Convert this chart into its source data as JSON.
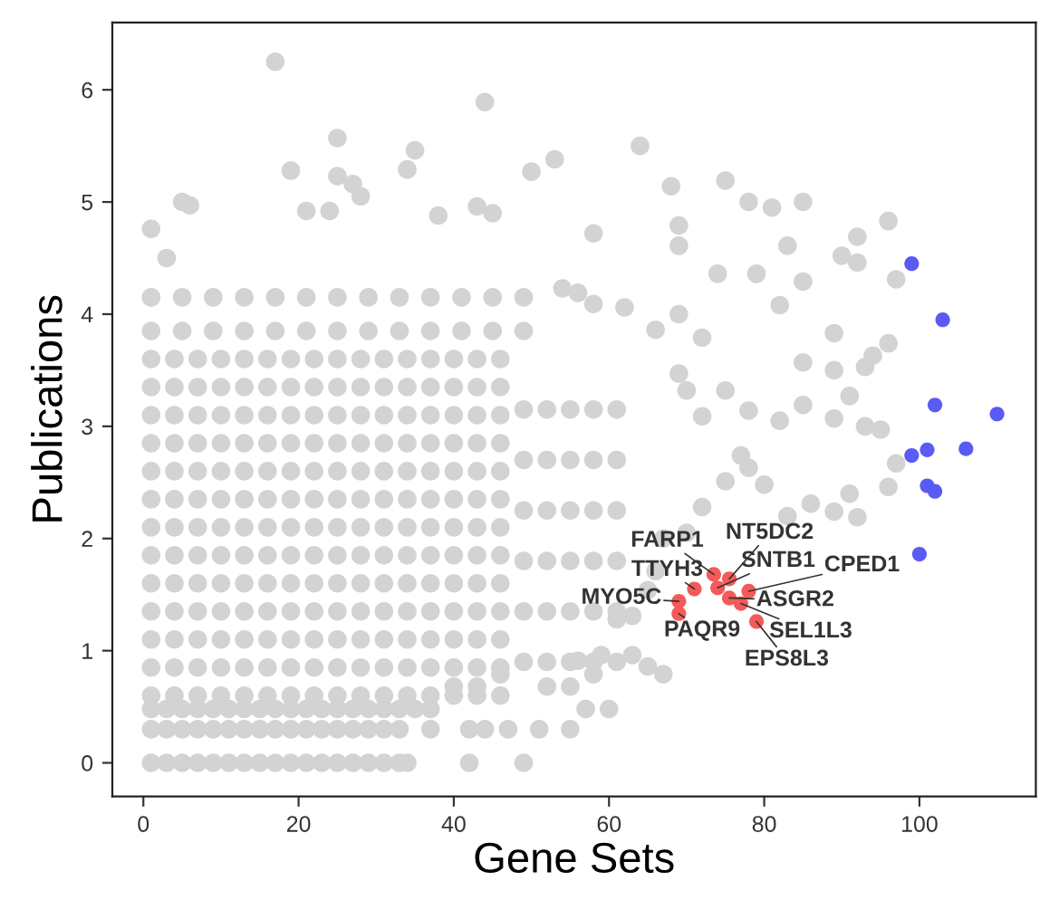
{
  "chart_data": {
    "type": "scatter",
    "xlabel": "Gene Sets",
    "ylabel": "Publications",
    "xlim": [
      -4,
      115
    ],
    "ylim": [
      -0.3,
      6.6
    ],
    "xticks": [
      0,
      20,
      40,
      60,
      80,
      100
    ],
    "yticks": [
      0,
      1,
      2,
      3,
      4,
      5,
      6
    ],
    "grid": false,
    "marker": "circle",
    "series": [
      {
        "color": "#d3d3d3",
        "x": [
          1,
          3,
          5,
          7,
          9,
          11,
          13,
          15,
          17,
          19,
          21,
          23,
          25,
          27,
          29,
          31,
          33,
          34,
          1,
          3,
          5,
          7,
          9,
          11,
          13,
          15,
          17,
          19,
          21,
          23,
          25,
          27,
          29,
          31,
          33,
          1,
          3,
          5,
          7,
          9,
          11,
          13,
          15,
          17,
          19,
          21,
          23,
          25,
          27,
          29,
          31,
          33,
          35,
          1,
          1,
          1,
          1,
          1,
          1,
          1,
          1,
          1,
          1,
          1,
          1,
          1,
          4,
          4,
          4,
          4,
          4,
          4,
          4,
          4,
          4,
          4,
          4,
          4,
          4,
          7,
          7,
          7,
          7,
          7,
          7,
          7,
          7,
          7,
          7,
          7,
          7,
          7,
          10,
          10,
          10,
          10,
          10,
          10,
          10,
          10,
          10,
          10,
          10,
          10,
          10,
          13,
          13,
          13,
          13,
          13,
          13,
          13,
          13,
          13,
          13,
          13,
          13,
          13,
          16,
          16,
          16,
          16,
          16,
          16,
          16,
          16,
          16,
          16,
          16,
          16,
          16,
          19,
          19,
          19,
          19,
          19,
          19,
          19,
          19,
          19,
          19,
          19,
          19,
          19,
          22,
          22,
          22,
          22,
          22,
          22,
          22,
          22,
          22,
          22,
          22,
          22,
          22,
          25,
          25,
          25,
          25,
          25,
          25,
          25,
          25,
          25,
          25,
          25,
          25,
          25,
          28,
          28,
          28,
          28,
          28,
          28,
          28,
          28,
          28,
          28,
          28,
          28,
          28,
          31,
          31,
          31,
          31,
          31,
          31,
          31,
          31,
          31,
          31,
          31,
          31,
          31,
          34,
          34,
          34,
          34,
          34,
          34,
          34,
          34,
          34,
          34,
          34,
          34,
          34,
          37,
          37,
          37,
          37,
          37,
          37,
          37,
          37,
          37,
          37,
          37,
          37,
          37,
          40,
          40,
          40,
          40,
          40,
          40,
          40,
          40,
          40,
          40,
          40,
          40,
          40,
          43,
          43,
          43,
          43,
          43,
          43,
          43,
          43,
          43,
          43,
          43,
          43,
          43,
          46,
          46,
          46,
          46,
          46,
          46,
          46,
          46,
          46,
          46,
          46,
          46,
          46,
          49,
          49,
          49,
          49,
          49,
          49,
          52,
          52,
          52,
          52,
          52,
          52,
          55,
          55,
          55,
          55,
          55,
          55,
          58,
          58,
          58,
          58,
          58,
          58,
          61,
          61,
          61,
          61,
          61,
          61,
          1,
          5,
          9,
          13,
          17,
          21,
          25,
          29,
          33,
          37,
          41,
          45,
          49,
          1,
          5,
          9,
          13,
          17,
          21,
          25,
          29,
          33,
          37,
          41,
          45,
          49,
          17,
          44,
          25,
          64,
          35,
          34,
          53,
          50,
          19,
          25,
          27,
          28,
          75,
          68,
          78,
          81,
          85,
          96,
          5,
          6,
          1,
          3,
          21,
          24,
          43,
          45,
          38,
          58,
          69,
          69,
          83,
          92,
          92,
          90,
          97,
          85,
          74,
          79,
          82,
          89,
          96,
          94,
          93,
          89,
          85,
          91,
          85,
          89,
          93,
          95,
          97,
          96,
          91,
          92,
          89,
          86,
          83,
          80,
          82,
          78,
          75,
          72,
          70,
          69,
          72,
          69,
          66,
          62,
          58,
          56,
          54,
          67,
          65,
          63,
          60,
          57,
          55,
          51,
          47,
          44,
          42,
          42,
          49,
          55,
          52,
          56,
          58,
          59,
          61,
          63,
          65,
          66,
          67,
          70,
          72,
          75,
          77,
          78,
          46,
          43,
          40,
          37,
          37
        ],
        "values": [
          0,
          0,
          0,
          0,
          0,
          0,
          0,
          0,
          0,
          0,
          0,
          0,
          0,
          0,
          0,
          0,
          0,
          0,
          0.3,
          0.3,
          0.3,
          0.3,
          0.3,
          0.3,
          0.3,
          0.3,
          0.3,
          0.3,
          0.3,
          0.3,
          0.3,
          0.3,
          0.3,
          0.3,
          0.3,
          0.48,
          0.48,
          0.48,
          0.48,
          0.48,
          0.48,
          0.48,
          0.48,
          0.48,
          0.48,
          0.48,
          0.48,
          0.48,
          0.48,
          0.48,
          0.48,
          0.48,
          0.48,
          0.6,
          0.85,
          1.1,
          1.35,
          1.6,
          1.85,
          2.1,
          2.35,
          2.6,
          2.85,
          3.1,
          3.35,
          3.6,
          0.6,
          0.85,
          1.1,
          1.35,
          1.6,
          1.85,
          2.1,
          2.35,
          2.6,
          2.85,
          3.1,
          3.35,
          3.6,
          0.6,
          0.85,
          1.1,
          1.35,
          1.6,
          1.85,
          2.1,
          2.35,
          2.6,
          2.85,
          3.1,
          3.35,
          3.6,
          0.6,
          0.85,
          1.1,
          1.35,
          1.6,
          1.85,
          2.1,
          2.35,
          2.6,
          2.85,
          3.1,
          3.35,
          3.6,
          0.6,
          0.85,
          1.1,
          1.35,
          1.6,
          1.85,
          2.1,
          2.35,
          2.6,
          2.85,
          3.1,
          3.35,
          3.6,
          0.6,
          0.85,
          1.1,
          1.35,
          1.6,
          1.85,
          2.1,
          2.35,
          2.6,
          2.85,
          3.1,
          3.35,
          3.6,
          0.6,
          0.85,
          1.1,
          1.35,
          1.6,
          1.85,
          2.1,
          2.35,
          2.6,
          2.85,
          3.1,
          3.35,
          3.6,
          0.6,
          0.85,
          1.1,
          1.35,
          1.6,
          1.85,
          2.1,
          2.35,
          2.6,
          2.85,
          3.1,
          3.35,
          3.6,
          0.6,
          0.85,
          1.1,
          1.35,
          1.6,
          1.85,
          2.1,
          2.35,
          2.6,
          2.85,
          3.1,
          3.35,
          3.6,
          0.6,
          0.85,
          1.1,
          1.35,
          1.6,
          1.85,
          2.1,
          2.35,
          2.6,
          2.85,
          3.1,
          3.35,
          3.6,
          0.6,
          0.85,
          1.1,
          1.35,
          1.6,
          1.85,
          2.1,
          2.35,
          2.6,
          2.85,
          3.1,
          3.35,
          3.6,
          0.6,
          0.85,
          1.1,
          1.35,
          1.6,
          1.85,
          2.1,
          2.35,
          2.6,
          2.85,
          3.1,
          3.35,
          3.6,
          0.6,
          0.85,
          1.1,
          1.35,
          1.6,
          1.85,
          2.1,
          2.35,
          2.6,
          2.85,
          3.1,
          3.35,
          3.6,
          0.6,
          0.85,
          1.1,
          1.35,
          1.6,
          1.85,
          2.1,
          2.35,
          2.6,
          2.85,
          3.1,
          3.35,
          3.6,
          0.6,
          0.85,
          1.1,
          1.35,
          1.6,
          1.85,
          2.1,
          2.35,
          2.6,
          2.85,
          3.1,
          3.35,
          3.6,
          0.6,
          0.85,
          1.1,
          1.35,
          1.6,
          1.85,
          2.1,
          2.35,
          2.6,
          2.85,
          3.1,
          3.35,
          3.6,
          0.9,
          1.35,
          1.8,
          2.25,
          2.7,
          3.15,
          0.9,
          1.35,
          1.8,
          2.25,
          2.7,
          3.15,
          0.9,
          1.35,
          1.8,
          2.25,
          2.7,
          3.15,
          0.9,
          1.35,
          1.8,
          2.25,
          2.7,
          3.15,
          0.9,
          1.35,
          1.8,
          2.25,
          2.7,
          3.15,
          3.85,
          3.85,
          3.85,
          3.85,
          3.85,
          3.85,
          3.85,
          3.85,
          3.85,
          3.85,
          3.85,
          3.85,
          3.85,
          4.15,
          4.15,
          4.15,
          4.15,
          4.15,
          4.15,
          4.15,
          4.15,
          4.15,
          4.15,
          4.15,
          4.15,
          4.15,
          6.25,
          5.89,
          5.57,
          5.5,
          5.46,
          5.29,
          5.38,
          5.27,
          5.28,
          5.23,
          5.16,
          5.05,
          5.19,
          5.14,
          5.0,
          4.95,
          5.0,
          4.83,
          5.0,
          4.97,
          4.76,
          4.5,
          4.92,
          4.92,
          4.96,
          4.9,
          4.88,
          4.72,
          4.79,
          4.61,
          4.61,
          4.69,
          4.46,
          4.52,
          4.31,
          4.29,
          4.36,
          4.36,
          4.08,
          3.83,
          3.74,
          3.63,
          3.53,
          3.5,
          3.57,
          3.27,
          3.19,
          3.07,
          3.0,
          2.97,
          2.67,
          2.46,
          2.4,
          2.19,
          2.24,
          2.31,
          2.2,
          2.48,
          3.05,
          3.14,
          3.32,
          3.09,
          3.32,
          3.47,
          3.79,
          4.0,
          3.86,
          4.06,
          4.09,
          4.19,
          4.23,
          0.79,
          0.86,
          0.96,
          0.48,
          0.48,
          0.3,
          0.3,
          0.3,
          0.3,
          0.3,
          0,
          0,
          0.68,
          0.68,
          0.91,
          0.79,
          0.96,
          1.28,
          1.31,
          1.54,
          1.71,
          2.0,
          2.05,
          2.28,
          2.51,
          2.74,
          2.63,
          0.79,
          0.68,
          0.68,
          0.48,
          0.3
        ]
      },
      {
        "color": "#5a5af5",
        "x": [
          99,
          103,
          102,
          110,
          106,
          101,
          99,
          101,
          102,
          100
        ],
        "values": [
          4.45,
          3.95,
          3.19,
          3.11,
          2.8,
          2.79,
          2.74,
          2.47,
          2.42,
          1.86
        ]
      },
      {
        "color": "#f55a5a",
        "x": [
          73.5,
          75.5,
          74,
          71,
          78,
          75.5,
          77,
          79,
          69,
          69
        ],
        "values": [
          1.68,
          1.64,
          1.56,
          1.55,
          1.53,
          1.47,
          1.42,
          1.26,
          1.44,
          1.33
        ]
      }
    ],
    "annotations": [
      {
        "text": "FARP1",
        "x": 73.5,
        "y": 1.68
      },
      {
        "text": "NT5DC2",
        "x": 75.5,
        "y": 1.64
      },
      {
        "text": "SNTB1",
        "x": 74,
        "y": 1.56
      },
      {
        "text": "TTYH3",
        "x": 71,
        "y": 1.55
      },
      {
        "text": "CPED1",
        "x": 78,
        "y": 1.53
      },
      {
        "text": "ASGR2",
        "x": 75.5,
        "y": 1.47
      },
      {
        "text": "SEL1L3",
        "x": 77,
        "y": 1.42
      },
      {
        "text": "EPS8L3",
        "x": 79,
        "y": 1.26
      },
      {
        "text": "MYO5C",
        "x": 69,
        "y": 1.44
      },
      {
        "text": "PAQR9",
        "x": 69,
        "y": 1.33
      }
    ]
  }
}
